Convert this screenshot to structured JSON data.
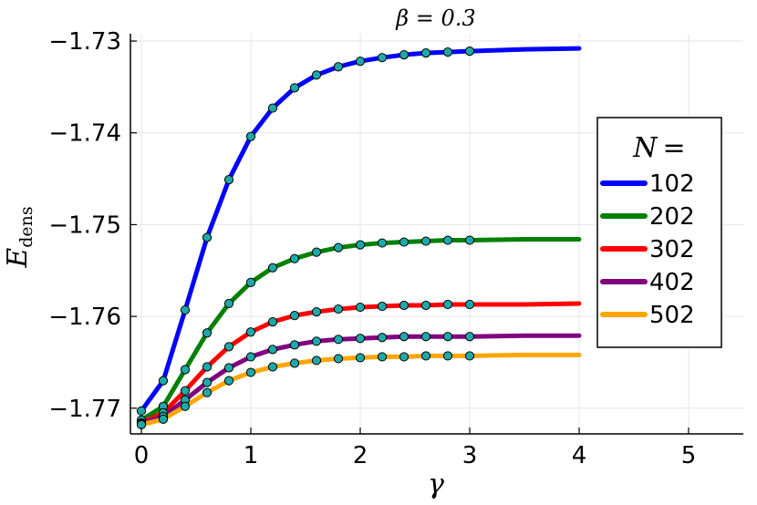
{
  "chart_data": {
    "type": "line",
    "title": "β = 0.3",
    "xlabel": "γ",
    "ylabel": "E_dens",
    "ylabel_main": "E",
    "ylabel_sub": "dens",
    "xlim": [
      -0.1,
      5.5
    ],
    "ylim": [
      -1.7728,
      -1.7292
    ],
    "x_ticks": [
      0,
      1,
      2,
      3,
      4,
      5
    ],
    "x_tick_labels": [
      "0",
      "1",
      "2",
      "3",
      "4",
      "5"
    ],
    "y_ticks": [
      -1.73,
      -1.74,
      -1.75,
      -1.76,
      -1.77
    ],
    "y_tick_labels": [
      "−1.73",
      "−1.74",
      "−1.75",
      "−1.76",
      "−1.77"
    ],
    "grid": true,
    "legend_title": "N =",
    "legend_title_main": "N",
    "legend_title_eq": "=",
    "legend_position": "right",
    "x": [
      0,
      0.2,
      0.4,
      0.6,
      0.8,
      1.0,
      1.2,
      1.4,
      1.6,
      1.8,
      2.0,
      2.2,
      2.4,
      2.6,
      2.8,
      3.0,
      3.5,
      4.0
    ],
    "marker_x": [
      0,
      0.2,
      0.4,
      0.6,
      0.8,
      1.0,
      1.2,
      1.4,
      1.6,
      1.8,
      2.0,
      2.2,
      2.4,
      2.6,
      2.8,
      3.0
    ],
    "series": [
      {
        "name": "102",
        "color": "#0000ff",
        "values": [
          -1.7703,
          -1.767,
          -1.7593,
          -1.7514,
          -1.7451,
          -1.7404,
          -1.7373,
          -1.7351,
          -1.7337,
          -1.7328,
          -1.7322,
          -1.7318,
          -1.7315,
          -1.7313,
          -1.7312,
          -1.7311,
          -1.7309,
          -1.7308
        ]
      },
      {
        "name": "202",
        "color": "#008000",
        "values": [
          -1.7713,
          -1.7698,
          -1.7658,
          -1.7618,
          -1.7586,
          -1.7563,
          -1.7547,
          -1.7537,
          -1.753,
          -1.7525,
          -1.7522,
          -1.752,
          -1.7519,
          -1.7518,
          -1.7517,
          -1.7517,
          -1.7516,
          -1.7516
        ]
      },
      {
        "name": "302",
        "color": "#ff0000",
        "values": [
          -1.7716,
          -1.7705,
          -1.7681,
          -1.7655,
          -1.7633,
          -1.7617,
          -1.7606,
          -1.7599,
          -1.7595,
          -1.7592,
          -1.759,
          -1.7589,
          -1.7588,
          -1.7588,
          -1.7587,
          -1.7587,
          -1.7587,
          -1.7586
        ]
      },
      {
        "name": "402",
        "color": "#800080",
        "values": [
          -1.7717,
          -1.7709,
          -1.7691,
          -1.7672,
          -1.7656,
          -1.7644,
          -1.7636,
          -1.7631,
          -1.7627,
          -1.7625,
          -1.7624,
          -1.7623,
          -1.7622,
          -1.7622,
          -1.7622,
          -1.7622,
          -1.7621,
          -1.7621
        ]
      },
      {
        "name": "502",
        "color": "#ffa500",
        "values": [
          -1.7718,
          -1.7712,
          -1.7698,
          -1.7683,
          -1.767,
          -1.7661,
          -1.7655,
          -1.7651,
          -1.7648,
          -1.7646,
          -1.7645,
          -1.7644,
          -1.7644,
          -1.7643,
          -1.7643,
          -1.7643,
          -1.7642,
          -1.7642
        ]
      }
    ],
    "marker_color": "#1fa8a8"
  }
}
